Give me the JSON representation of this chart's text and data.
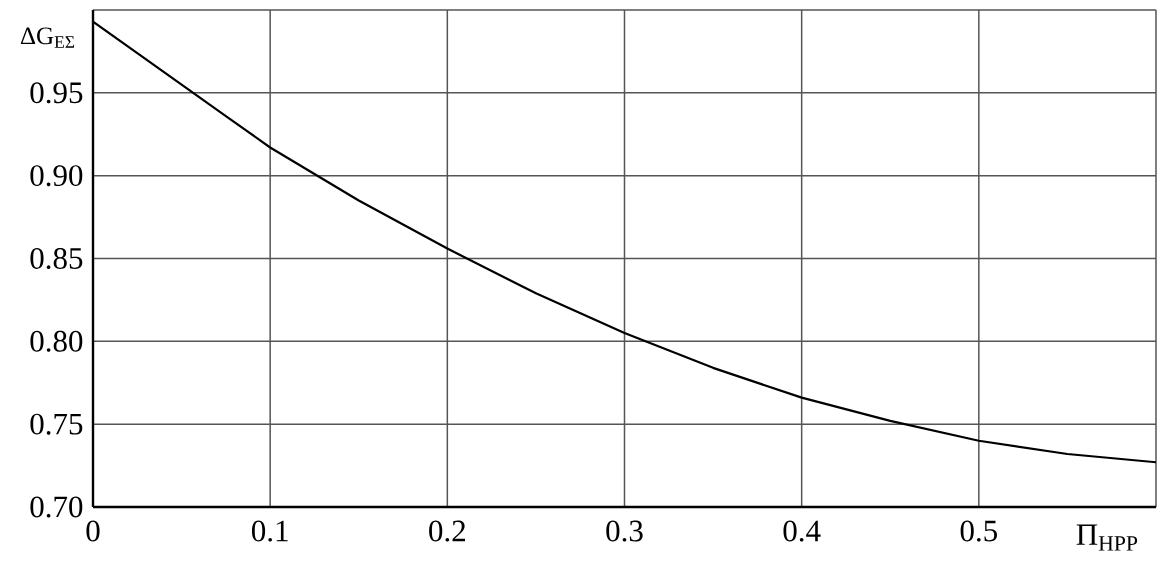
{
  "chart_data": {
    "type": "line",
    "xlabel": "Π$_{HPP}$",
    "ylabel": "ΔG$_{EΣ}$",
    "x": [
      0,
      0.025,
      0.05,
      0.075,
      0.1,
      0.15,
      0.2,
      0.25,
      0.3,
      0.35,
      0.4,
      0.45,
      0.5,
      0.55,
      0.6
    ],
    "values": [
      0.993,
      0.974,
      0.955,
      0.936,
      0.917,
      0.885,
      0.856,
      0.829,
      0.805,
      0.784,
      0.766,
      0.752,
      0.74,
      0.732,
      0.727
    ],
    "color": "#000000",
    "line_style": "solid",
    "xlim": [
      0,
      0.6
    ],
    "ylim": [
      0.7,
      1.0
    ],
    "xticks": [
      0,
      0.1,
      0.2,
      0.3,
      0.4,
      0.5,
      {
        "value": 0.6,
        "label": null
      }
    ],
    "yticks": [
      {
        "value": 0.7,
        "label": "0.70"
      },
      0.75,
      {
        "value": 0.8,
        "label": "0.80"
      },
      0.85,
      {
        "value": 0.9,
        "label": "0.90"
      },
      0.95,
      {
        "value": 1.0,
        "label": null
      }
    ],
    "grid": true
  }
}
